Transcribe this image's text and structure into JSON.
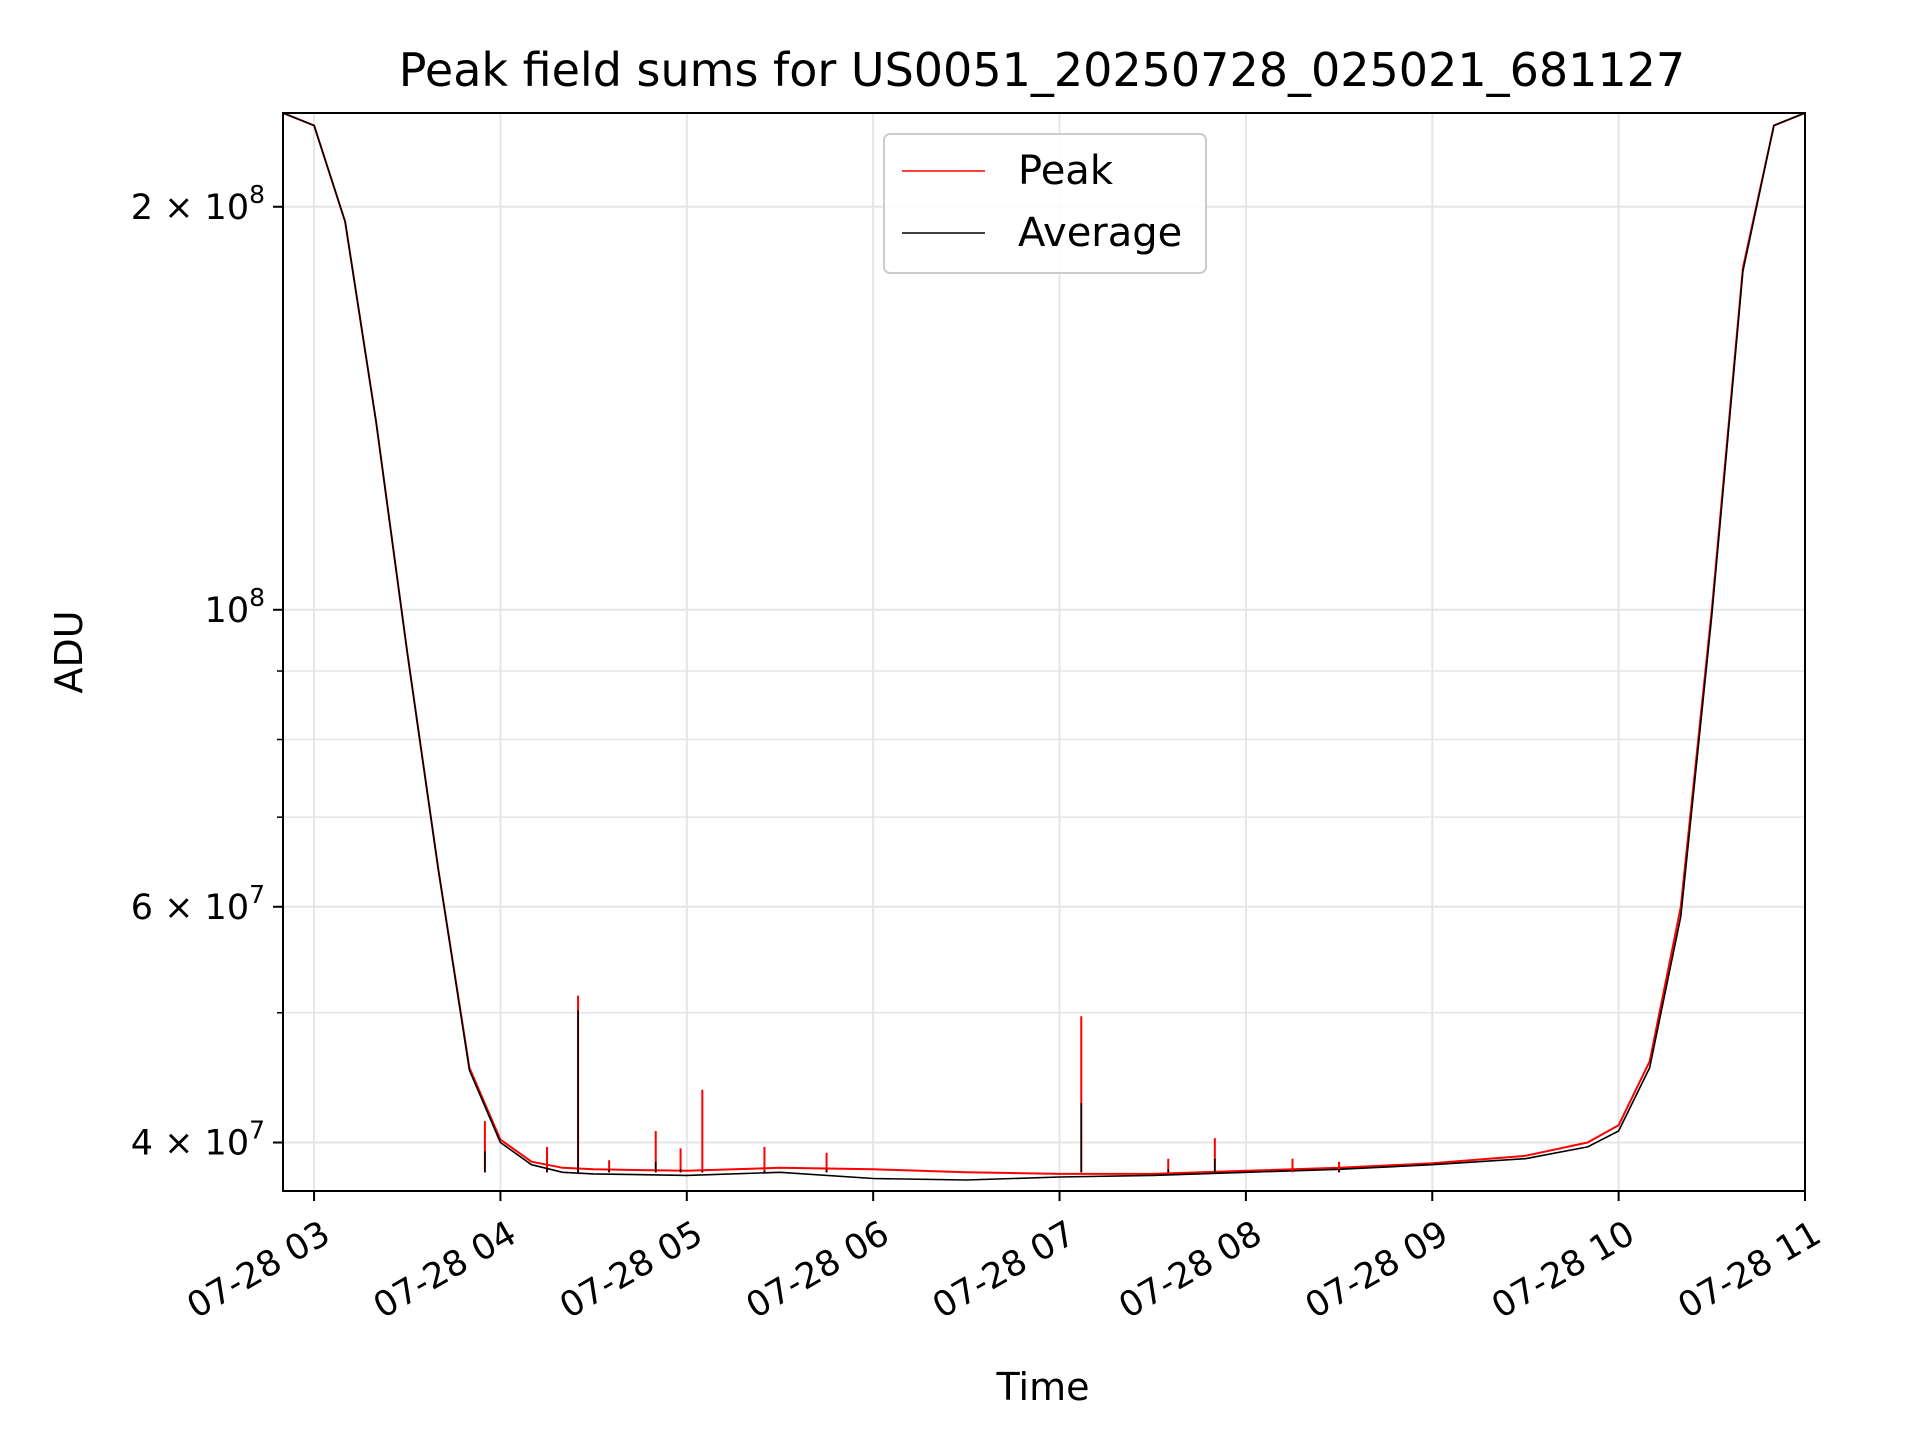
{
  "chart_data": {
    "type": "line",
    "title": "Peak field sums for US0051_20250728_025021_681127",
    "xlabel": "Time",
    "ylabel": "ADU",
    "y_scale": "log",
    "ylim": [
      36800000,
      235000000
    ],
    "xlim": [
      "07-28 02:50",
      "07-28 11:00"
    ],
    "x_tick_labels": [
      "07-28 03",
      "07-28 04",
      "07-28 05",
      "07-28 06",
      "07-28 07",
      "07-28 08",
      "07-28 09",
      "07-28 10",
      "07-28 11"
    ],
    "y_tick_labels": [
      {
        "value": 200000000,
        "mantissa": "2",
        "exponent": "8"
      },
      {
        "value": 100000000,
        "mantissa": "",
        "exponent": "8"
      },
      {
        "value": 60000000,
        "mantissa": "6",
        "exponent": "7"
      },
      {
        "value": 40000000,
        "mantissa": "4",
        "exponent": "7"
      }
    ],
    "y_minor_ticks": [
      50000000,
      70000000,
      80000000,
      90000000
    ],
    "grid": true,
    "legend": {
      "placement": "top-center",
      "entries": [
        {
          "label": "Peak",
          "color": "#ff0000"
        },
        {
          "label": "Average",
          "color": "#000000"
        }
      ]
    },
    "x": [
      "07-28 02:50",
      "07-28 03:00",
      "07-28 03:10",
      "07-28 03:20",
      "07-28 03:30",
      "07-28 03:40",
      "07-28 03:50",
      "07-28 04:00",
      "07-28 04:10",
      "07-28 04:20",
      "07-28 04:30",
      "07-28 05:00",
      "07-28 05:30",
      "07-28 06:00",
      "07-28 06:30",
      "07-28 07:00",
      "07-28 07:30",
      "07-28 08:00",
      "07-28 08:30",
      "07-28 09:00",
      "07-28 09:30",
      "07-28 09:50",
      "07-28 10:00",
      "07-28 10:10",
      "07-28 10:20",
      "07-28 10:30",
      "07-28 10:40",
      "07-28 10:50",
      "07-28 11:00"
    ],
    "series": [
      {
        "name": "Peak",
        "color": "#ff0000",
        "values": [
          235000000,
          230000000,
          195000000,
          138000000,
          93000000,
          64000000,
          45500000,
          40200000,
          38700000,
          38300000,
          38200000,
          38100000,
          38300000,
          38200000,
          38000000,
          37900000,
          37900000,
          38100000,
          38300000,
          38600000,
          39100000,
          40000000,
          41200000,
          46000000,
          60000000,
          100000000,
          180000000,
          230000000,
          235000000
        ]
      },
      {
        "name": "Average",
        "color": "#000000",
        "values": [
          235000000,
          230000000,
          195000000,
          138000000,
          93000000,
          64000000,
          45300000,
          40000000,
          38500000,
          38000000,
          37900000,
          37800000,
          38000000,
          37600000,
          37500000,
          37700000,
          37800000,
          38000000,
          38200000,
          38500000,
          38900000,
          39700000,
          40800000,
          45500000,
          59000000,
          99000000,
          179000000,
          230000000,
          235000000
        ]
      }
    ],
    "spikes": [
      {
        "x": "07-28 03:55",
        "peak": 41500000,
        "average": 39400000
      },
      {
        "x": "07-28 04:15",
        "peak": 39700000,
        "average": 38300000
      },
      {
        "x": "07-28 04:25",
        "peak": 51500000,
        "average": 50200000
      },
      {
        "x": "07-28 04:35",
        "peak": 38800000,
        "average": 38200000
      },
      {
        "x": "07-28 04:50",
        "peak": 40800000,
        "average": 38700000
      },
      {
        "x": "07-28 04:58",
        "peak": 39600000,
        "average": 38200000
      },
      {
        "x": "07-28 05:05",
        "peak": 43800000,
        "average": 38100000
      },
      {
        "x": "07-28 05:25",
        "peak": 39700000,
        "average": 38100000
      },
      {
        "x": "07-28 05:45",
        "peak": 39300000,
        "average": 38200000
      },
      {
        "x": "07-28 07:07",
        "peak": 49700000,
        "average": 42800000
      },
      {
        "x": "07-28 07:35",
        "peak": 38900000,
        "average": 38200000
      },
      {
        "x": "07-28 07:50",
        "peak": 40300000,
        "average": 38900000
      },
      {
        "x": "07-28 08:15",
        "peak": 38900000,
        "average": 38000000
      },
      {
        "x": "07-28 08:30",
        "peak": 38700000,
        "average": 38200000
      }
    ]
  }
}
